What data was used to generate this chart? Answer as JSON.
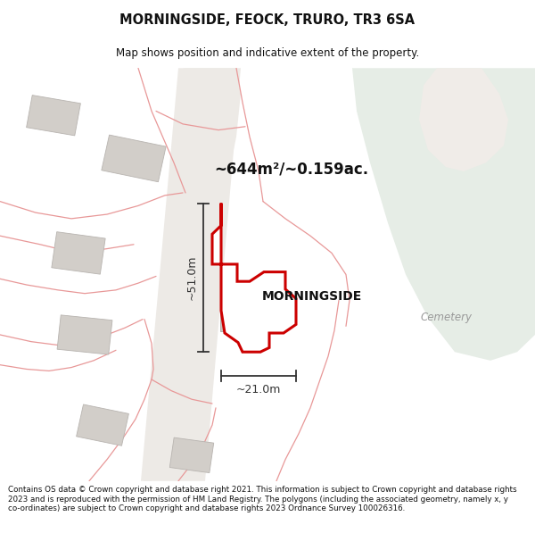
{
  "title": "MORNINGSIDE, FEOCK, TRURO, TR3 6SA",
  "subtitle": "Map shows position and indicative extent of the property.",
  "area_text": "~644m²/~0.159ac.",
  "property_label": "MORNINGSIDE",
  "dim_vertical": "~51.0m",
  "dim_horizontal": "~21.0m",
  "cemetery_label": "Cemetery",
  "footer": "Contains OS data © Crown copyright and database right 2021. This information is subject to Crown copyright and database rights 2023 and is reproduced with the permission of HM Land Registry. The polygons (including the associated geometry, namely x, y co-ordinates) are subject to Crown copyright and database rights 2023 Ordnance Survey 100026316.",
  "bg_color": "#f4f1ee",
  "green_color": "#e6ede6",
  "road_color": "#edeae6",
  "building_color": "#d2cec9",
  "building_edge": "#b8b4b0",
  "boundary_color": "#e89898",
  "property_fill": "#ffffff",
  "property_outline": "#cc0000",
  "dim_color": "#333333",
  "title_color": "#111111",
  "footer_color": "#111111",
  "cemetery_color": "#999999",
  "label_color": "#111111"
}
